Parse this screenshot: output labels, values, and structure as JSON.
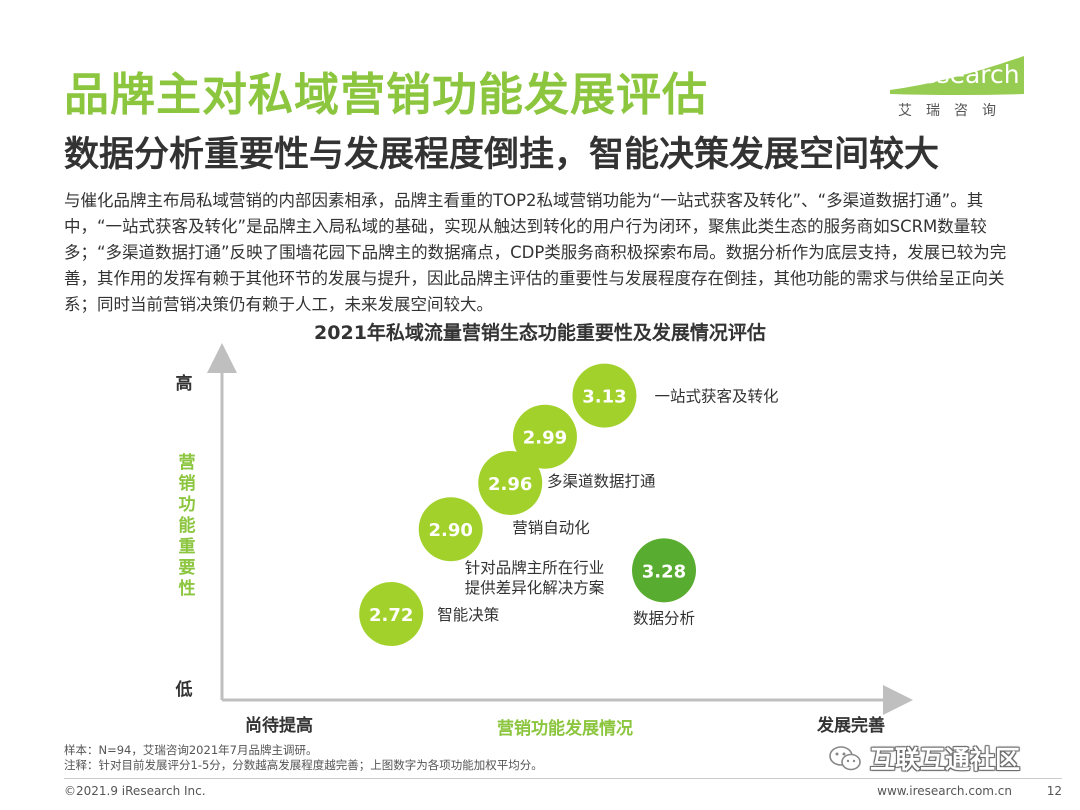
{
  "header": {
    "title": "品牌主对私域营销功能发展评估",
    "subtitle": "数据分析重要性与发展程度倒挂，智能决策发展空间较大"
  },
  "logo": {
    "text": "iResearch",
    "subtext": "艾瑞咨询"
  },
  "intro": "与催化品牌主布局私域营销的内部因素相承，品牌主看重的TOP2私域营销功能为“一站式获客及转化”、“多渠道数据打通”。其中，“一站式获客及转化”是品牌主入局私域的基础，实现从触达到转化的用户行为闭环，聚焦此类生态的服务商如SCRM数量较多；“多渠道数据打通”反映了围墙花园下品牌主的数据痛点，CDP类服务商积极探索布局。数据分析作为底层支持，发展已较为完善，其作用的发挥有赖于其他环节的发展与提升，因此品牌主评估的重要性与发展程度存在倒挂，其他功能的需求与供给呈正向关系；同时当前营销决策仍有赖于人工，未来发展空间较大。",
  "chart_data": {
    "type": "scatter",
    "title": "2021年私域流量营销生态功能重要性及发展情况评估",
    "xlabel": "营销功能发展情况",
    "ylabel": "营销功能重要性",
    "x_low_label": "尚待提高",
    "x_high_label": "发展完善",
    "y_high_label": "高",
    "y_low_label": "低",
    "xlim": [
      0,
      10
    ],
    "ylim": [
      0,
      10
    ],
    "grid": false,
    "colors": {
      "light": "#a3d12c",
      "dark": "#58ac2f"
    },
    "points": [
      {
        "label": "一站式获客及转化",
        "value": "3.13",
        "x": 6.3,
        "y": 9.9,
        "shade": "light"
      },
      {
        "label": "多渠道数据打通",
        "value": "2.99",
        "x": 5.1,
        "y": 8.3,
        "shade": "light"
      },
      {
        "label": "营销自动化",
        "value": "2.96",
        "x": 4.4,
        "y": 6.5,
        "shade": "light"
      },
      {
        "label": "针对品牌主所在行业\n提供差异化解决方案",
        "value": "2.90",
        "x": 3.2,
        "y": 4.7,
        "shade": "light"
      },
      {
        "label": "智能决策",
        "value": "2.72",
        "x": 2.0,
        "y": 1.4,
        "shade": "light"
      },
      {
        "label": "数据分析",
        "value": "3.28",
        "x": 7.5,
        "y": 3.1,
        "shade": "dark"
      }
    ]
  },
  "notes": {
    "sample": "样本：N=94，艾瑞咨询2021年7月品牌主调研。",
    "note": "注释：针对目前发展评分1-5分，分数越高发展程度越完善；上图数字为各项功能加权平均分。"
  },
  "footer": {
    "copyright": "©2021.9 iResearch Inc.",
    "website": "www.iresearch.com.cn",
    "page": "12"
  },
  "watermark": {
    "text": "互联互通社区"
  }
}
